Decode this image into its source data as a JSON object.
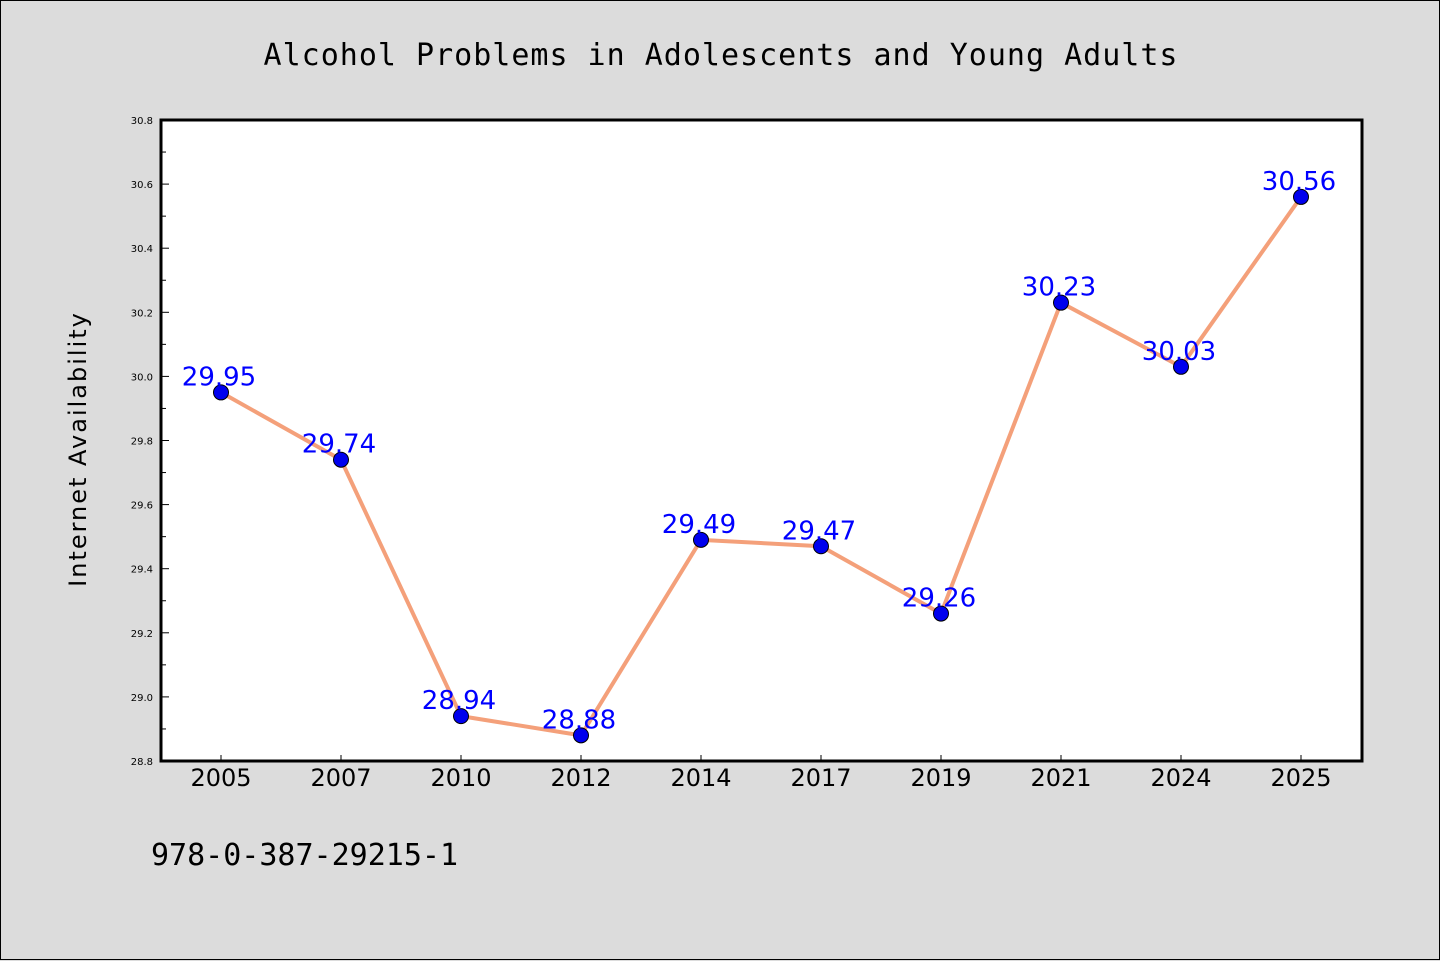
{
  "chart_data": {
    "type": "line",
    "title": "Alcohol Problems in Adolescents and Young Adults",
    "xlabel": "",
    "ylabel": "Internet Availability",
    "categories": [
      "2005",
      "2007",
      "2010",
      "2012",
      "2014",
      "2017",
      "2019",
      "2021",
      "2024",
      "2025"
    ],
    "series": [
      {
        "values": [
          29.95,
          29.74,
          28.94,
          28.88,
          29.49,
          29.47,
          29.26,
          30.23,
          30.03,
          30.56
        ],
        "labels": [
          "29.95",
          "29.74",
          "28.94",
          "28.88",
          "29.49",
          "29.47",
          "29.26",
          "30.23",
          "30.03",
          "30.56"
        ]
      }
    ],
    "ylim": [
      28.8,
      30.8
    ],
    "yticks": [
      "28.8",
      "29.0",
      "29.2",
      "29.4",
      "29.6",
      "29.8",
      "30.0",
      "30.2",
      "30.4",
      "30.6",
      "30.8"
    ],
    "grid": false,
    "legend": "none",
    "colors": {
      "line": "#f4a07a",
      "marker": "#0000ee",
      "data_label": "#0000ff",
      "background": "#dcdcdc",
      "plot_area": "#ffffff"
    }
  },
  "footer": {
    "code": "978-0-387-29215-1"
  }
}
